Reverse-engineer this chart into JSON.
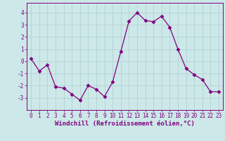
{
  "x": [
    0,
    1,
    2,
    3,
    4,
    5,
    6,
    7,
    8,
    9,
    10,
    11,
    12,
    13,
    14,
    15,
    16,
    17,
    18,
    19,
    20,
    21,
    22,
    23
  ],
  "y": [
    0.2,
    -0.8,
    -0.3,
    -2.1,
    -2.2,
    -2.7,
    -3.2,
    -2.0,
    -2.3,
    -2.9,
    -1.7,
    0.8,
    3.3,
    4.0,
    3.35,
    3.25,
    3.7,
    2.8,
    1.0,
    -0.6,
    -1.1,
    -1.5,
    -2.5,
    -2.5
  ],
  "line_color": "#800080",
  "marker": "D",
  "marker_size": 2.5,
  "bg_color": "#cce8e8",
  "grid_color": "#b0cece",
  "xlabel": "Windchill (Refroidissement éolien,°C)",
  "ylim": [
    -4,
    4.8
  ],
  "xlim": [
    -0.5,
    23.5
  ],
  "yticks": [
    -3,
    -2,
    -1,
    0,
    1,
    2,
    3,
    4
  ],
  "xticks": [
    0,
    1,
    2,
    3,
    4,
    5,
    6,
    7,
    8,
    9,
    10,
    11,
    12,
    13,
    14,
    15,
    16,
    17,
    18,
    19,
    20,
    21,
    22,
    23
  ],
  "axis_color": "#800080",
  "tick_color": "#800080",
  "spine_color": "#800080",
  "label_fontsize": 5.5,
  "xlabel_fontsize": 6.5
}
